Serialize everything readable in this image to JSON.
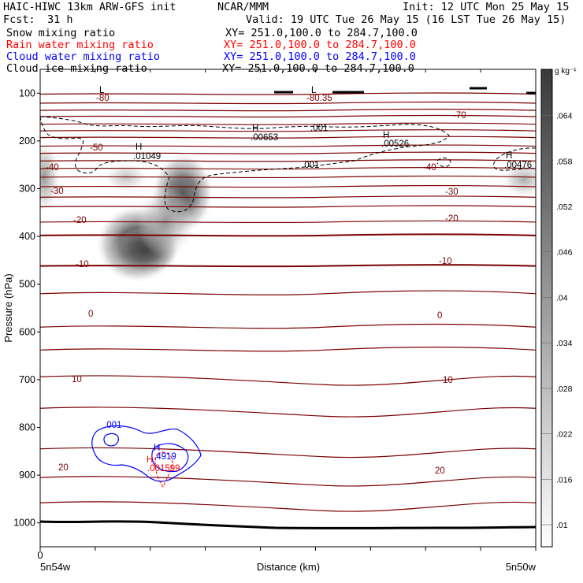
{
  "header": {
    "title": "HAIC-HIWC 13km ARW-GFS init",
    "org": "NCAR/MMM",
    "init": "Init: 12 UTC Mon 25 May 15",
    "fcst_label": "Fcst:",
    "fcst_value": "31 h",
    "valid": "Valid: 19 UTC Tue 26 May 15 (16 LST Tue 26 May 15)"
  },
  "fields": [
    {
      "name": "Snow mixing ratio",
      "xy": "XY= 251.0,100.0 to 284.7,100.0",
      "color": "#000000"
    },
    {
      "name": "Rain water mixing ratio",
      "xy": "XY= 251.0,100.0 to 284.7,100.0",
      "color": "#ff0000"
    },
    {
      "name": "Cloud water mixing ratio",
      "xy": "XY= 251.0,100.0 to 284.7,100.0",
      "color": "#0000ff"
    },
    {
      "name": "Cloud ice mixing ratio",
      "xy": "XY= 251.0,100.0 to 284.7,100.0",
      "color": "#000000"
    }
  ],
  "chart_data": {
    "type": "heatmap",
    "xlabel": "Distance (km)",
    "ylabel": "Pressure (hPa)",
    "x_tick_labels": {
      "zero": "0",
      "left": "5n54w",
      "right": "5n50w"
    },
    "yticks": [
      100,
      200,
      300,
      400,
      500,
      600,
      700,
      800,
      900,
      1000
    ],
    "yrange": [
      50,
      1050
    ],
    "colorbar": {
      "unit": "g kg⁻¹",
      "levels": [
        ".01",
        ".016",
        ".022",
        ".028",
        ".034",
        ".04",
        ".046",
        ".052",
        ".058",
        ".064"
      ]
    },
    "temperature_labels": [
      "-80",
      "-80.35",
      "-70",
      "-50",
      "-40",
      "-40",
      "-30",
      "-30",
      "-20",
      "-20",
      "-10",
      "-10",
      "0",
      "0",
      "10",
      "10",
      "20",
      "20"
    ],
    "ice_labels": [
      "L",
      "L",
      "H",
      ".01049",
      "H",
      ".00653",
      ".001",
      "H",
      ".00526",
      ".001",
      "H",
      ".00476"
    ],
    "cloudwater_labels": [
      ".001",
      "H",
      ".4919"
    ],
    "rain_labels": [
      "H",
      ".001599"
    ],
    "snow_maxima": [
      {
        "x": 0.2,
        "p": 350,
        "value": 0.064
      },
      {
        "x": 0.3,
        "p": 270,
        "value": 0.058
      },
      {
        "x": 0.01,
        "p": 240,
        "value": 0.046
      },
      {
        "x": 0.97,
        "p": 290,
        "value": 0.034
      }
    ]
  },
  "colors": {
    "temperature": "#7a0000",
    "ice": "#000000",
    "cloud_water": "#0000ff",
    "rain": "#ff0000"
  }
}
